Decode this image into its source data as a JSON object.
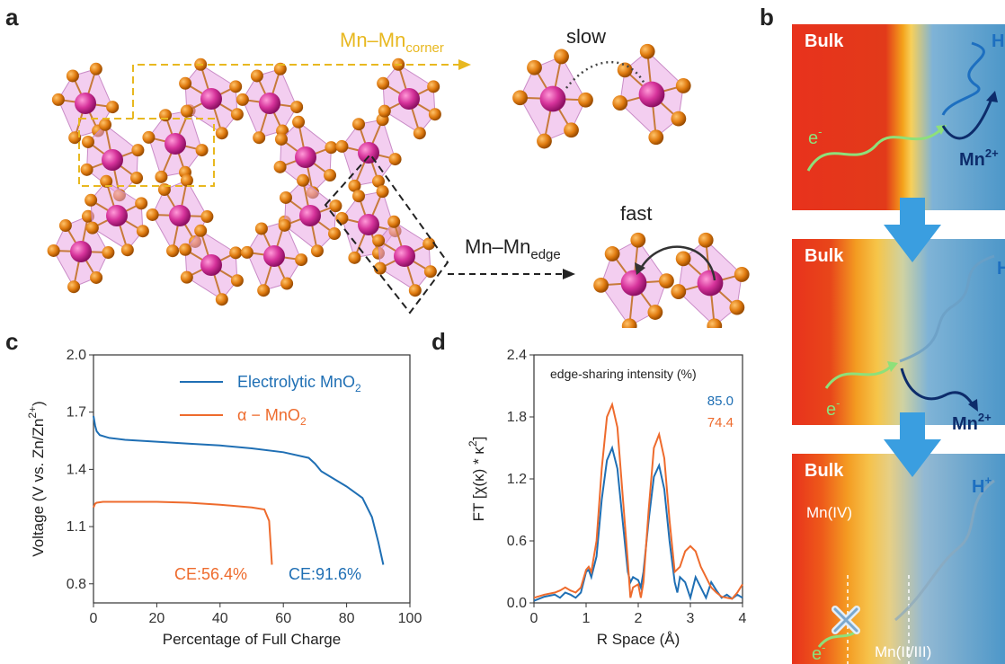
{
  "panel_labels": {
    "a": "a",
    "b": "b",
    "c": "c",
    "d": "d"
  },
  "panel_a": {
    "corner_label": "Mn–Mn",
    "corner_sub": "corner",
    "edge_label": "Mn–Mn",
    "edge_sub": "edge",
    "slow": "slow",
    "fast": "fast",
    "colors": {
      "corner": "#e8b820",
      "edge": "#222222",
      "mn": "#d6339b",
      "o": "#e07b10",
      "poly": "#e9a6e4"
    }
  },
  "panel_b": {
    "bulk": "Bulk",
    "h": "H",
    "h_sup": "+",
    "e": "e",
    "e_sup": "-",
    "mn2": "Mn",
    "mn2_sup": "2+",
    "mn4": "Mn(IV)",
    "mn23": "Mn(II/III)"
  },
  "chart_data": [
    {
      "type": "line",
      "panel": "c",
      "xlabel": "Percentage of Full Charge",
      "ylabel": "Voltage (V vs. Zn/Zn",
      "ylabel_sup": "2+",
      "ylabel_end": ")",
      "xlim": [
        0,
        100
      ],
      "ylim": [
        0.7,
        2.0
      ],
      "xticks": [
        "0",
        "20",
        "40",
        "60",
        "80",
        "100"
      ],
      "yticks": [
        "0.8",
        "1.1",
        "1.4",
        "1.7",
        "2.0"
      ],
      "series": [
        {
          "name": "Electrolytic MnO",
          "name_sub": "2",
          "color": "#1f6fb4",
          "x": [
            0,
            0.5,
            1,
            2,
            5,
            10,
            20,
            30,
            40,
            50,
            60,
            68,
            70,
            72,
            75,
            80,
            85,
            88,
            90,
            91.6
          ],
          "y": [
            1.68,
            1.63,
            1.6,
            1.58,
            1.565,
            1.555,
            1.545,
            1.535,
            1.525,
            1.51,
            1.49,
            1.46,
            1.43,
            1.39,
            1.36,
            1.31,
            1.25,
            1.15,
            1.02,
            0.9
          ]
        },
        {
          "name": "α − MnO",
          "name_sub": "2",
          "color": "#ee6b2d",
          "x": [
            0,
            0.5,
            1,
            3,
            10,
            20,
            30,
            40,
            50,
            54,
            55.5,
            56.4
          ],
          "y": [
            1.2,
            1.22,
            1.225,
            1.23,
            1.23,
            1.23,
            1.225,
            1.215,
            1.2,
            1.19,
            1.13,
            0.9
          ]
        }
      ],
      "annotations": [
        {
          "text": "CE:56.4%",
          "color": "#ee6b2d"
        },
        {
          "text": "CE:91.6%",
          "color": "#1f6fb4"
        }
      ]
    },
    {
      "type": "line",
      "panel": "d",
      "xlabel": "R Space (Å)",
      "ylabel": "FT [χ(κ) * κ",
      "ylabel_sup": "2",
      "ylabel_end": "]",
      "xlim": [
        0,
        4
      ],
      "ylim": [
        0,
        2.4
      ],
      "xticks": [
        "0",
        "1",
        "2",
        "3",
        "4"
      ],
      "yticks": [
        "0.0",
        "0.6",
        "1.2",
        "1.8",
        "2.4"
      ],
      "legend_title": "edge-sharing intensity (%)",
      "series": [
        {
          "name": "85.0",
          "color": "#1f6fb4",
          "x": [
            0,
            0.2,
            0.4,
            0.5,
            0.6,
            0.7,
            0.8,
            0.9,
            1.0,
            1.05,
            1.1,
            1.2,
            1.3,
            1.4,
            1.5,
            1.6,
            1.7,
            1.8,
            1.85,
            1.9,
            2.0,
            2.05,
            2.1,
            2.2,
            2.3,
            2.4,
            2.5,
            2.6,
            2.7,
            2.75,
            2.8,
            2.9,
            3.0,
            3.1,
            3.2,
            3.3,
            3.4,
            3.5,
            3.6,
            3.7,
            3.8,
            3.9,
            4.0
          ],
          "y": [
            0.02,
            0.06,
            0.08,
            0.05,
            0.1,
            0.08,
            0.05,
            0.1,
            0.3,
            0.32,
            0.25,
            0.45,
            1.0,
            1.38,
            1.5,
            1.3,
            0.8,
            0.3,
            0.2,
            0.25,
            0.22,
            0.15,
            0.3,
            0.8,
            1.22,
            1.33,
            1.1,
            0.6,
            0.2,
            0.1,
            0.25,
            0.2,
            0.05,
            0.25,
            0.15,
            0.05,
            0.2,
            0.12,
            0.05,
            0.08,
            0.04,
            0.08,
            0.05
          ]
        },
        {
          "name": "74.4",
          "color": "#ee6b2d",
          "x": [
            0,
            0.2,
            0.4,
            0.5,
            0.6,
            0.7,
            0.8,
            0.9,
            1.0,
            1.05,
            1.1,
            1.2,
            1.3,
            1.4,
            1.5,
            1.6,
            1.7,
            1.8,
            1.85,
            1.9,
            2.0,
            2.05,
            2.1,
            2.2,
            2.3,
            2.4,
            2.5,
            2.6,
            2.7,
            2.8,
            2.9,
            3.0,
            3.1,
            3.2,
            3.3,
            3.4,
            3.5,
            3.6,
            3.7,
            3.8,
            3.9,
            4.0
          ],
          "y": [
            0.05,
            0.08,
            0.1,
            0.12,
            0.15,
            0.12,
            0.1,
            0.15,
            0.32,
            0.35,
            0.3,
            0.6,
            1.3,
            1.8,
            1.92,
            1.7,
            1.05,
            0.4,
            0.05,
            0.15,
            0.18,
            0.05,
            0.2,
            0.9,
            1.5,
            1.63,
            1.4,
            0.8,
            0.3,
            0.35,
            0.5,
            0.55,
            0.5,
            0.35,
            0.25,
            0.15,
            0.1,
            0.06,
            0.05,
            0.04,
            0.1,
            0.18
          ]
        }
      ]
    }
  ]
}
